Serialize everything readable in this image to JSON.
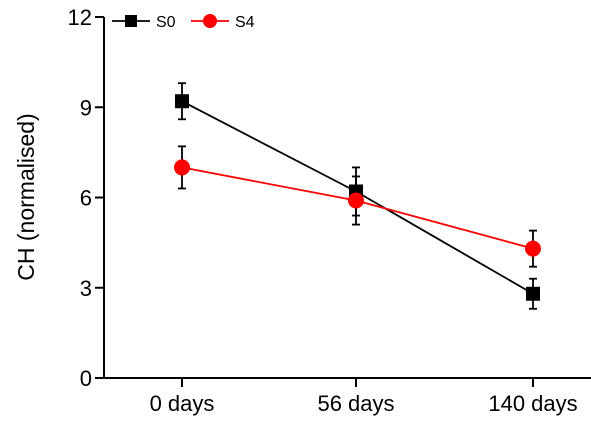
{
  "chart_data": {
    "type": "line",
    "categories": [
      "0 days",
      "56 days",
      "140 days"
    ],
    "ylabel": "CH (normalised)",
    "ylim": [
      0,
      12
    ],
    "yticks": [
      "0",
      "3",
      "6",
      "9",
      "12"
    ],
    "grid": false,
    "legend_position": "top-left",
    "series": [
      {
        "name": "S0",
        "color": "#000000",
        "marker": "square",
        "values": [
          9.2,
          6.2,
          2.8
        ],
        "errors": [
          0.6,
          0.8,
          0.5
        ]
      },
      {
        "name": "S4",
        "color": "#ff0000",
        "marker": "circle",
        "values": [
          7.0,
          5.9,
          4.3
        ],
        "errors": [
          0.7,
          0.8,
          0.6
        ]
      }
    ]
  }
}
